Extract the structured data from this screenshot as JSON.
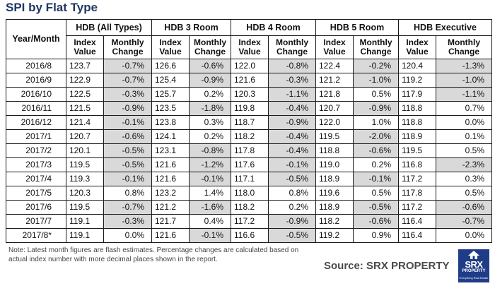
{
  "title": "SPI by Flat Type",
  "table": {
    "year_month_header": "Year/Month",
    "groups": [
      "HDB (All Types)",
      "HDB 3 Room",
      "HDB 4 Room",
      "HDB 5 Room",
      "HDB Executive"
    ],
    "subheaders": {
      "index": "Index Value",
      "change": "Monthly Change"
    },
    "rows": [
      {
        "ym": "2016/8",
        "cells": [
          [
            "123.7",
            "-0.7%"
          ],
          [
            "126.6",
            "-0.6%"
          ],
          [
            "122.0",
            "-0.8%"
          ],
          [
            "122.4",
            "-0.2%"
          ],
          [
            "120.4",
            "-1.3%"
          ]
        ]
      },
      {
        "ym": "2016/9",
        "cells": [
          [
            "122.9",
            "-0.7%"
          ],
          [
            "125.4",
            "-0.9%"
          ],
          [
            "121.6",
            "-0.3%"
          ],
          [
            "121.2",
            "-1.0%"
          ],
          [
            "119.2",
            "-1.0%"
          ]
        ]
      },
      {
        "ym": "2016/10",
        "cells": [
          [
            "122.5",
            "-0.3%"
          ],
          [
            "125.7",
            "0.2%"
          ],
          [
            "120.3",
            "-1.1%"
          ],
          [
            "121.8",
            "0.5%"
          ],
          [
            "117.9",
            "-1.1%"
          ]
        ]
      },
      {
        "ym": "2016/11",
        "cells": [
          [
            "121.5",
            "-0.9%"
          ],
          [
            "123.5",
            "-1.8%"
          ],
          [
            "119.8",
            "-0.4%"
          ],
          [
            "120.7",
            "-0.9%"
          ],
          [
            "118.8",
            "0.7%"
          ]
        ]
      },
      {
        "ym": "2016/12",
        "cells": [
          [
            "121.4",
            "-0.1%"
          ],
          [
            "123.8",
            "0.3%"
          ],
          [
            "118.7",
            "-0.9%"
          ],
          [
            "122.0",
            "1.0%"
          ],
          [
            "118.8",
            "0.0%"
          ]
        ]
      },
      {
        "ym": "2017/1",
        "cells": [
          [
            "120.7",
            "-0.6%"
          ],
          [
            "124.1",
            "0.2%"
          ],
          [
            "118.2",
            "-0.4%"
          ],
          [
            "119.5",
            "-2.0%"
          ],
          [
            "118.9",
            "0.1%"
          ]
        ]
      },
      {
        "ym": "2017/2",
        "cells": [
          [
            "120.1",
            "-0.5%"
          ],
          [
            "123.1",
            "-0.8%"
          ],
          [
            "117.8",
            "-0.4%"
          ],
          [
            "118.8",
            "-0.6%"
          ],
          [
            "119.5",
            "0.5%"
          ]
        ]
      },
      {
        "ym": "2017/3",
        "cells": [
          [
            "119.5",
            "-0.5%"
          ],
          [
            "121.6",
            "-1.2%"
          ],
          [
            "117.6",
            "-0.1%"
          ],
          [
            "119.0",
            "0.2%"
          ],
          [
            "116.8",
            "-2.3%"
          ]
        ]
      },
      {
        "ym": "2017/4",
        "cells": [
          [
            "119.3",
            "-0.1%"
          ],
          [
            "121.6",
            "-0.1%"
          ],
          [
            "117.1",
            "-0.5%"
          ],
          [
            "118.9",
            "-0.1%"
          ],
          [
            "117.2",
            "0.3%"
          ]
        ]
      },
      {
        "ym": "2017/5",
        "cells": [
          [
            "120.3",
            "0.8%"
          ],
          [
            "123.2",
            "1.4%"
          ],
          [
            "118.0",
            "0.8%"
          ],
          [
            "119.6",
            "0.5%"
          ],
          [
            "117.8",
            "0.5%"
          ]
        ]
      },
      {
        "ym": "2017/6",
        "cells": [
          [
            "119.5",
            "-0.7%"
          ],
          [
            "121.2",
            "-1.6%"
          ],
          [
            "118.2",
            "0.2%"
          ],
          [
            "118.9",
            "-0.5%"
          ],
          [
            "117.2",
            "-0.6%"
          ]
        ]
      },
      {
        "ym": "2017/7",
        "cells": [
          [
            "119.1",
            "-0.3%"
          ],
          [
            "121.7",
            "0.4%"
          ],
          [
            "117.2",
            "-0.9%"
          ],
          [
            "118.2",
            "-0.6%"
          ],
          [
            "116.4",
            "-0.7%"
          ]
        ]
      },
      {
        "ym": "2017/8*",
        "cells": [
          [
            "119.1",
            "0.0%"
          ],
          [
            "121.6",
            "-0.1%"
          ],
          [
            "116.6",
            "-0.5%"
          ],
          [
            "119.2",
            "0.9%"
          ],
          [
            "116.4",
            "0.0%"
          ]
        ]
      }
    ],
    "negative_fill": "#d9d9d9"
  },
  "note": "Note: Latest month figures are flash estimates. Percentage changes are calculated based on actual index number with more decimal places shown in the report.",
  "source": "Source:  SRX PROPERTY",
  "logo": {
    "text": "SRX",
    "subtext": "PROPERTY",
    "tagline": "Everything Real Estate",
    "color": "#1f3c88"
  }
}
